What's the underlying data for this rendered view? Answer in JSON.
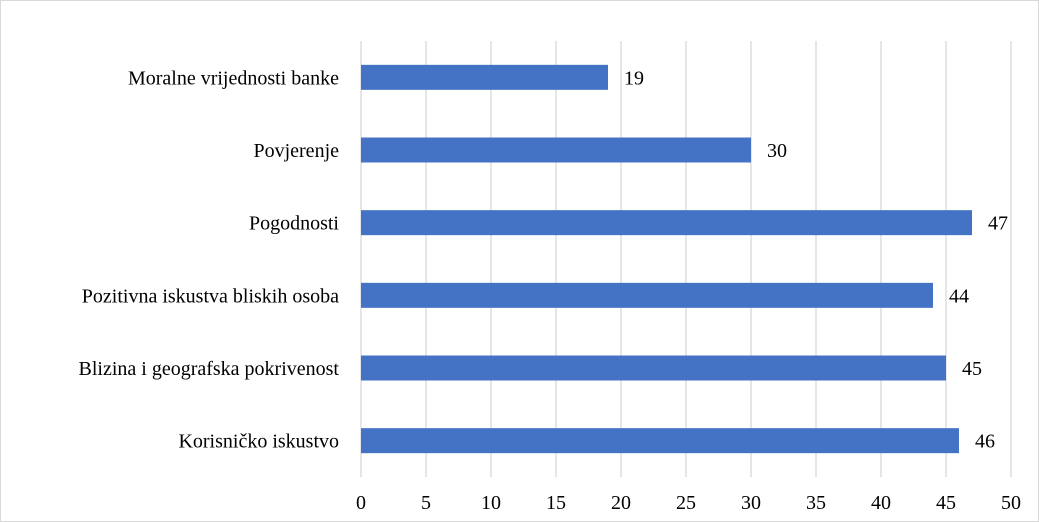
{
  "chart_data": {
    "type": "bar",
    "orientation": "horizontal",
    "categories": [
      "Moralne vrijednosti banke",
      "Povjerenje",
      "Pogodnosti",
      "Pozitivna iskustva bliskih osoba",
      "Blizina i geografska pokrivenost",
      "Korisničko iskustvo"
    ],
    "values": [
      19,
      30,
      47,
      44,
      45,
      46
    ],
    "xlim": [
      0,
      50
    ],
    "xticks": [
      0,
      5,
      10,
      15,
      20,
      25,
      30,
      35,
      40,
      45,
      50
    ],
    "title": "",
    "xlabel": "",
    "ylabel": "",
    "grid": "vertical",
    "legend": "none",
    "bar_color": "#4472C4",
    "grid_color": "#d9d9d9"
  }
}
